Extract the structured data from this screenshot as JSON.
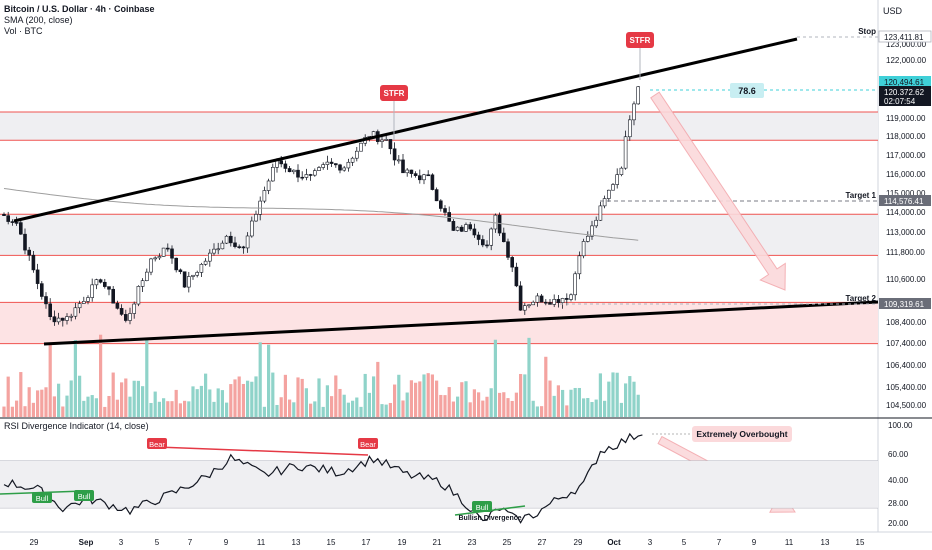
{
  "header": {
    "title": "Bitcoin / U.S. Dollar · 4h · Coinbase",
    "sma": "SMA (200, close)",
    "vol": "Vol · BTC",
    "currency": "USD"
  },
  "colors": {
    "up": "#26a69a",
    "down": "#ef5350",
    "zone_line": "#ef5350",
    "zone_fill": "#f5c6c8",
    "wedge": "#000000",
    "sma": "#9e9e9e",
    "arrow": "#f7c5c8",
    "stfr_bg": "#e53945",
    "bull_bg": "#2e9e48",
    "bear_bg": "#e53945",
    "last_price_bg": "#131722",
    "highlight_bg": "#3fd0d8"
  },
  "chart_data": {
    "type": "candlestick",
    "price_axis": {
      "ticks": [
        "123,000.00",
        "122,000.00",
        "120,000.00",
        "119,000.00",
        "118,000.00",
        "117,000.00",
        "116,000.00",
        "115,000.00",
        "114,000.00",
        "113,000.00",
        "111,800.00",
        "110,600.00",
        "109,400.00",
        "108,400.00",
        "107,400.00",
        "106,400.00",
        "105,400.00",
        "104,500.00"
      ],
      "badges": [
        {
          "label": "123,411.81",
          "style": "outline"
        },
        {
          "label": "120,494.61",
          "style": "highlight"
        },
        {
          "label": "120,372.62",
          "style": "dark"
        },
        {
          "label": "02:07:54",
          "style": "dark"
        },
        {
          "label": "114,576.41",
          "style": "gray"
        },
        {
          "label": "109,319.61",
          "style": "gray"
        }
      ]
    },
    "x_axis": {
      "ticks": [
        "29",
        "Sep",
        "3",
        "5",
        "7",
        "9",
        "11",
        "13",
        "15",
        "17",
        "19",
        "21",
        "23",
        "25",
        "27",
        "29",
        "Oct",
        "3",
        "5",
        "7",
        "9",
        "11",
        "13",
        "15"
      ]
    },
    "price_levels": [
      {
        "label": "Stop",
        "value": 123411.81
      },
      {
        "label": "Target 1",
        "value": 114576.41
      },
      {
        "label": "Target 2",
        "value": 109319.61
      }
    ],
    "resistance_zones": [
      {
        "top": 119000,
        "bottom": 117600
      },
      {
        "top": 113900,
        "bottom": 111800
      },
      {
        "top": 109400,
        "bottom": 107300
      }
    ],
    "stfr_labels": [
      "STFR",
      "STFR"
    ],
    "fib_label": "78.6",
    "rsi": {
      "title": "RSI Divergence Indicator (14, close)",
      "axis_ticks": [
        "100.00",
        "60.00",
        "40.00",
        "28.00",
        "20.00"
      ],
      "overbought_level": 70,
      "oversold_level": 30,
      "labels": [
        "Bull",
        "Bull",
        "Bear",
        "Bear",
        "Bull",
        "Bullish Divergence",
        "Extremely Overbought"
      ],
      "last_value": 97
    }
  }
}
